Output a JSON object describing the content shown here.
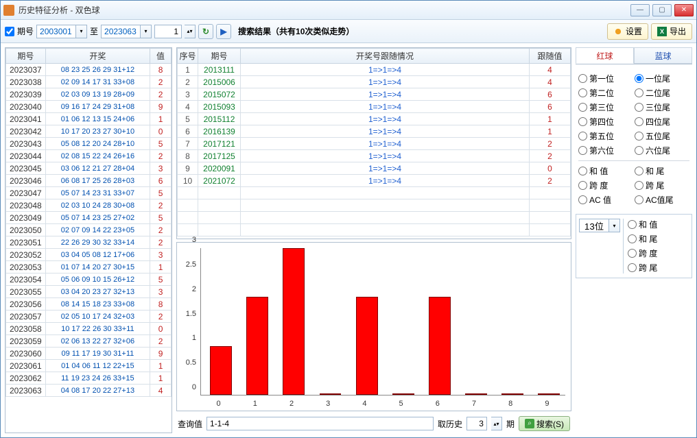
{
  "window": {
    "title": "历史特征分析 - 双色球"
  },
  "toolbar": {
    "period_label": "期号",
    "from": "2003001",
    "to_label": "至",
    "to": "2023063",
    "spin": "1",
    "result": "搜索结果（共有10次类似走势）",
    "settings": "设置",
    "export": "导出"
  },
  "left": {
    "headers": [
      "期号",
      "开奖",
      "值"
    ],
    "rows": [
      [
        "2023037",
        "08 23 25 26 29 31+12",
        "8"
      ],
      [
        "2023038",
        "02 09 14 17 31 33+08",
        "2"
      ],
      [
        "2023039",
        "02 03 09 13 19 28+09",
        "2"
      ],
      [
        "2023040",
        "09 16 17 24 29 31+08",
        "9"
      ],
      [
        "2023041",
        "01 06 12 13 15 24+06",
        "1"
      ],
      [
        "2023042",
        "10 17 20 23 27 30+10",
        "0"
      ],
      [
        "2023043",
        "05 08 12 20 24 28+10",
        "5"
      ],
      [
        "2023044",
        "02 08 15 22 24 26+16",
        "2"
      ],
      [
        "2023045",
        "03 06 12 21 27 28+04",
        "3"
      ],
      [
        "2023046",
        "06 08 17 25 26 28+03",
        "6"
      ],
      [
        "2023047",
        "05 07 14 23 31 33+07",
        "5"
      ],
      [
        "2023048",
        "02 03 10 24 28 30+08",
        "2"
      ],
      [
        "2023049",
        "05 07 14 23 25 27+02",
        "5"
      ],
      [
        "2023050",
        "02 07 09 14 22 23+05",
        "2"
      ],
      [
        "2023051",
        "22 26 29 30 32 33+14",
        "2"
      ],
      [
        "2023052",
        "03 04 05 08 12 17+06",
        "3"
      ],
      [
        "2023053",
        "01 07 14 20 27 30+15",
        "1"
      ],
      [
        "2023054",
        "05 06 09 10 15 26+12",
        "5"
      ],
      [
        "2023055",
        "03 04 20 23 27 32+13",
        "3"
      ],
      [
        "2023056",
        "08 14 15 18 23 33+08",
        "8"
      ],
      [
        "2023057",
        "02 05 10 17 24 32+03",
        "2"
      ],
      [
        "2023058",
        "10 17 22 26 30 33+11",
        "0"
      ],
      [
        "2023059",
        "02 06 13 22 27 32+06",
        "2"
      ],
      [
        "2023060",
        "09 11 17 19 30 31+11",
        "9"
      ],
      [
        "2023061",
        "01 04 06 11 12 22+15",
        "1"
      ],
      [
        "2023062",
        "11 19 23 24 26 33+15",
        "1"
      ],
      [
        "2023063",
        "04 08 17 20 22 27+13",
        "4"
      ]
    ]
  },
  "mid": {
    "headers": [
      "序号",
      "期号",
      "开奖号跟随情况",
      "跟随值"
    ],
    "rows": [
      [
        "1",
        "2013111",
        "1=>1=>4",
        "4"
      ],
      [
        "2",
        "2015006",
        "1=>1=>4",
        "4"
      ],
      [
        "3",
        "2015072",
        "1=>1=>4",
        "6"
      ],
      [
        "4",
        "2015093",
        "1=>1=>4",
        "6"
      ],
      [
        "5",
        "2015112",
        "1=>1=>4",
        "1"
      ],
      [
        "6",
        "2016139",
        "1=>1=>4",
        "1"
      ],
      [
        "7",
        "2017121",
        "1=>1=>4",
        "2"
      ],
      [
        "8",
        "2017125",
        "1=>1=>4",
        "2"
      ],
      [
        "9",
        "2020091",
        "1=>1=>4",
        "0"
      ],
      [
        "10",
        "2021072",
        "1=>1=>4",
        "2"
      ]
    ]
  },
  "chart": {
    "type": "bar",
    "categories": [
      "0",
      "1",
      "2",
      "3",
      "4",
      "5",
      "6",
      "7",
      "8",
      "9"
    ],
    "values": [
      1,
      2,
      3,
      0,
      2,
      0,
      2,
      0,
      0,
      0
    ],
    "ylim": [
      0,
      3
    ],
    "ytick_step": 0.5,
    "bar_color": "#ff0000",
    "bar_border": "#800000",
    "background_color": "#ffffff"
  },
  "bottom": {
    "query_label": "查询值",
    "query_value": "1-1-4",
    "history_label": "取历史",
    "history_value": "3",
    "period_label": "期",
    "search": "搜索(S)"
  },
  "right": {
    "tabs": [
      "红球",
      "蓝球"
    ],
    "active_tab": 0,
    "group1": [
      [
        "第一位",
        "一位尾"
      ],
      [
        "第二位",
        "二位尾"
      ],
      [
        "第三位",
        "三位尾"
      ],
      [
        "第四位",
        "四位尾"
      ],
      [
        "第五位",
        "五位尾"
      ],
      [
        "第六位",
        "六位尾"
      ]
    ],
    "group2": [
      [
        "和 值",
        "和 尾"
      ],
      [
        "跨 度",
        "跨 尾"
      ],
      [
        "AC 值",
        "AC值尾"
      ]
    ],
    "selected": "一位尾",
    "sub_sel": "13位",
    "sub_radios": [
      "和 值",
      "和 尾",
      "跨 度",
      "跨 尾"
    ]
  }
}
